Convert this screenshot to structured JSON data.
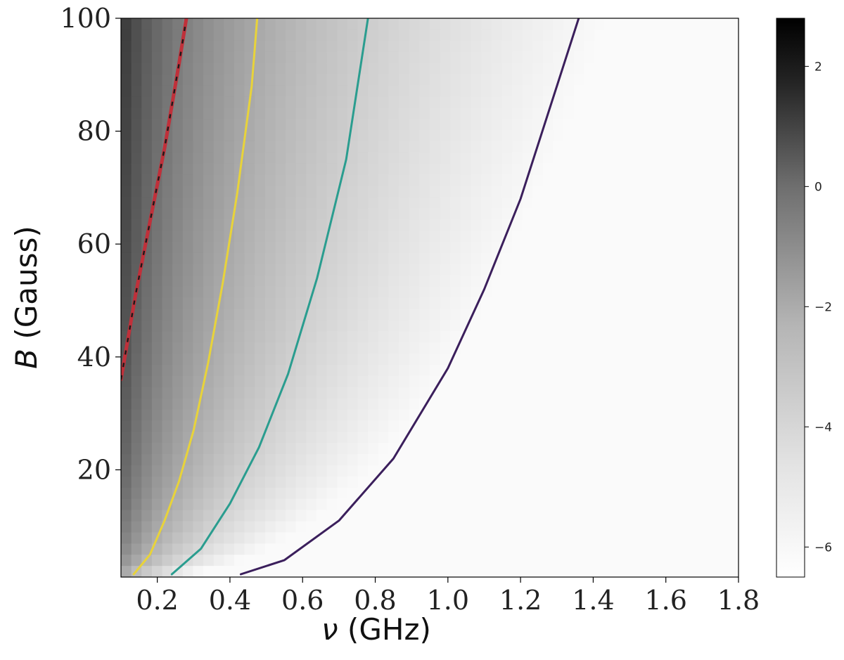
{
  "chart_data": {
    "type": "heatmap",
    "title": "",
    "xlabel": {
      "symbol": "ν",
      "unit": " (GHz)"
    },
    "ylabel": {
      "symbol": "B",
      "unit": " (Gauss)"
    },
    "xlim": [
      0.1,
      1.8
    ],
    "ylim": [
      1,
      100
    ],
    "x_ticks": [
      0.2,
      0.4,
      0.6,
      0.8,
      1.0,
      1.2,
      1.4,
      1.6,
      1.8
    ],
    "x_tick_labels": [
      "0.2",
      "0.4",
      "0.6",
      "0.8",
      "1.0",
      "1.2",
      "1.4",
      "1.6",
      "1.8"
    ],
    "y_ticks": [
      20,
      40,
      60,
      80,
      100
    ],
    "y_tick_labels": [
      "20",
      "40",
      "60",
      "80",
      "100"
    ],
    "grid": false,
    "colormap": "gray_r",
    "colorbar": {
      "range": [
        -6.5,
        2.8
      ],
      "ticks": [
        2,
        0,
        -2,
        -4,
        -6
      ],
      "tick_labels": [
        "2",
        "0",
        "−2",
        "−4",
        "−6"
      ]
    },
    "heatmap_model": "value decreases with frequency and increases with field; darkest at low ν, high B",
    "series": [
      {
        "color": "#c0303a",
        "dashed_overlay": "#1a1a1a",
        "points": [
          [
            0.1,
            36
          ],
          [
            0.14,
            51
          ],
          [
            0.18,
            64
          ],
          [
            0.22,
            77
          ],
          [
            0.26,
            92
          ],
          [
            0.28,
            100
          ]
        ]
      },
      {
        "color": "#e8d33a",
        "points": [
          [
            0.135,
            1.5
          ],
          [
            0.18,
            5
          ],
          [
            0.22,
            11
          ],
          [
            0.26,
            18
          ],
          [
            0.3,
            27
          ],
          [
            0.34,
            39
          ],
          [
            0.38,
            53
          ],
          [
            0.42,
            69
          ],
          [
            0.46,
            88
          ],
          [
            0.475,
            100
          ]
        ]
      },
      {
        "color": "#2a9d8f",
        "points": [
          [
            0.24,
            1.5
          ],
          [
            0.32,
            6
          ],
          [
            0.4,
            14
          ],
          [
            0.48,
            24
          ],
          [
            0.56,
            37
          ],
          [
            0.64,
            54
          ],
          [
            0.72,
            75
          ],
          [
            0.78,
            100
          ]
        ]
      },
      {
        "color": "#3b1f5c",
        "points": [
          [
            0.43,
            1.5
          ],
          [
            0.55,
            4
          ],
          [
            0.7,
            11
          ],
          [
            0.85,
            22
          ],
          [
            1.0,
            38
          ],
          [
            1.1,
            52
          ],
          [
            1.2,
            68
          ],
          [
            1.3,
            88
          ],
          [
            1.36,
            100
          ]
        ]
      }
    ]
  }
}
